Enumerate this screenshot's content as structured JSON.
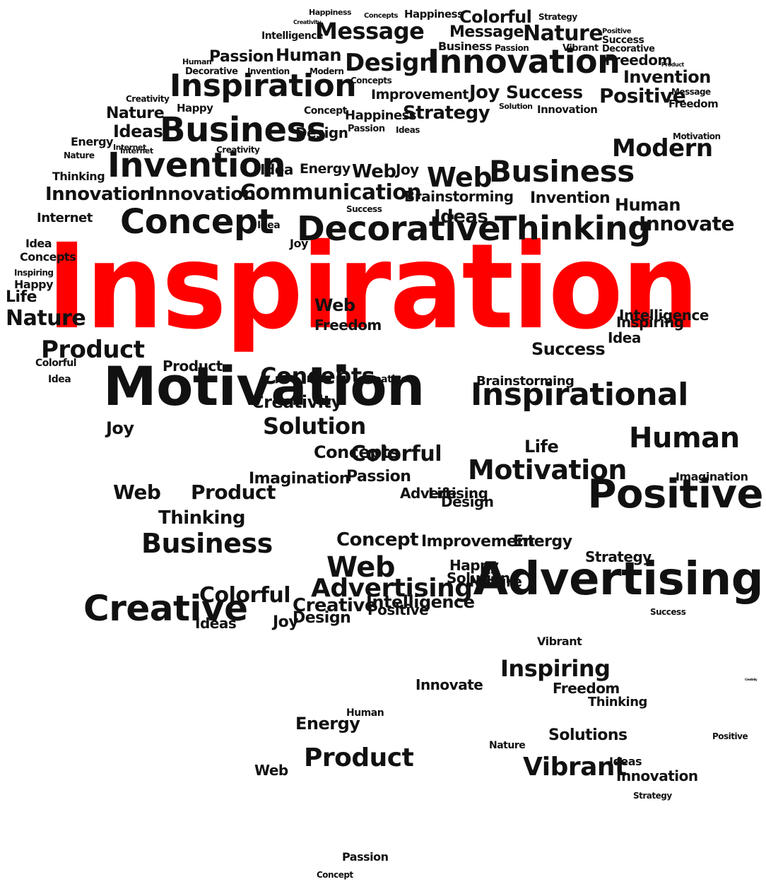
{
  "hero_word": "Inspiration",
  "colors": {
    "background": "#ffffff",
    "text": "#111111",
    "hero": "#ff0000"
  },
  "words": [
    "Happiness",
    "Concepts",
    "Happiness",
    "Colorful",
    "Strategy",
    "Creativity",
    "Message",
    "Message",
    "Nature",
    "Positive",
    "Intelligence",
    "Success",
    "Decorative",
    "Human",
    "Passion",
    "Human",
    "Design",
    "Innovation",
    "Freedom",
    "Product",
    "Decorative",
    "Invention",
    "Modern",
    "Business",
    "Passion",
    "Vibrant",
    "Invention",
    "Inspiration",
    "Concepts",
    "Improvement",
    "Joy",
    "Success",
    "Positive",
    "Message",
    "Creativity",
    "Happy",
    "Strategy",
    "Solution",
    "Innovation",
    "Freedom",
    "Nature",
    "Ideas",
    "Business",
    "Concept",
    "Design",
    "Happiness",
    "Internet",
    "Passion",
    "Ideas",
    "Motivation",
    "Nature",
    "Energy",
    "Internet",
    "Modern",
    "Creativity",
    "Idea",
    "Energy",
    "Web",
    "Joy",
    "Web",
    "Business",
    "Invention",
    "Thinking",
    "Innovation",
    "Innovation",
    "Communication",
    "Brainstorming",
    "Invention",
    "Human",
    "Internet",
    "Concept",
    "Success",
    "Ideas",
    "Thinking",
    "Innovate",
    "Idea",
    "Idea",
    "Concepts",
    "Inspiring",
    "Happy",
    "Life",
    "Nature",
    "Decorative",
    "Product",
    "Joy",
    "Web",
    "Freedom",
    "Success",
    "Idea",
    "Inspiring",
    "Intelligence",
    "Colorful",
    "Idea",
    "Motivation",
    "Product",
    "Concepts",
    "Creative",
    "Creativity",
    "Brainstorming",
    "Inspirational",
    "Solution",
    "Joy",
    "Concepts",
    "Colorful",
    "Motivation",
    "Life",
    "Human",
    "Positive",
    "Web",
    "Product",
    "Thinking",
    "Imagination",
    "Passion",
    "Advertising",
    "Life",
    "Design",
    "Imagination",
    "Business",
    "Concept",
    "Improvement",
    "Energy",
    "Web",
    "Advertising",
    "Happy",
    "Creative",
    "Colorful",
    "Creative",
    "Advertising",
    "Joy",
    "Intelligence",
    "Design",
    "Positive",
    "Ideas",
    "Strategy",
    "Solution",
    "Nature",
    "Vibrant",
    "Inspiring",
    "Success",
    "Innovate",
    "Freedom",
    "Thinking",
    "Energy",
    "Human",
    "Creativity",
    "Solutions",
    "Nature",
    "Vibrant",
    "Web",
    "Positive",
    "Ideas",
    "Innovation",
    "Strategy",
    "Product",
    "Passion",
    "Concept"
  ]
}
